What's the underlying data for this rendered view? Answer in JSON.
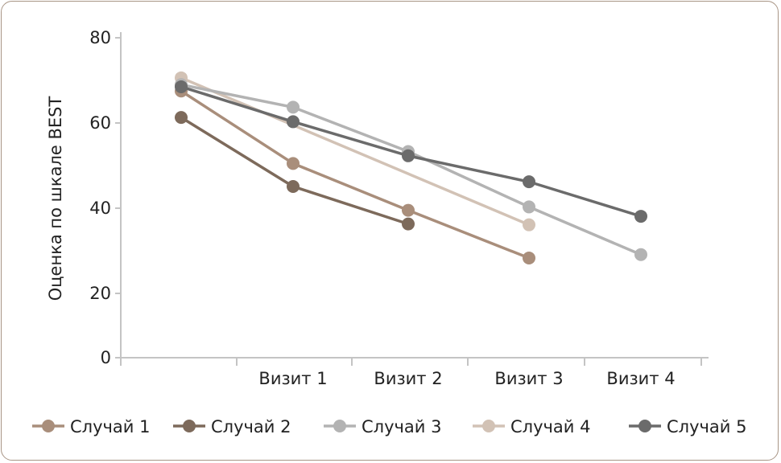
{
  "chart_data": {
    "type": "line",
    "title": "",
    "xlabel": "",
    "ylabel": "Оценка по шкале BEST",
    "categories": [
      "",
      "Визит 1",
      "Визит 2",
      "Визит 3",
      "Визит 4"
    ],
    "yticks": [
      "0",
      "20",
      "40",
      "60",
      "80"
    ],
    "ylim": [
      0,
      80
    ],
    "grid": false,
    "legend_position": "bottom",
    "series": [
      {
        "name": "Случай 1",
        "color": "#a98e7b",
        "values": [
          67.5,
          50.5,
          39.5,
          28.3,
          null
        ]
      },
      {
        "name": "Случай 2",
        "color": "#7d6a5b",
        "values": [
          61.3,
          45.1,
          36.3,
          null,
          null
        ]
      },
      {
        "name": "Случай 3",
        "color": "#b3b3b3",
        "values": [
          69.0,
          63.7,
          53.3,
          40.3,
          29.1
        ]
      },
      {
        "name": "Случай 4",
        "color": "#d2c2b5",
        "values": [
          70.6,
          null,
          null,
          36.1,
          null
        ]
      },
      {
        "name": "Случай 5",
        "color": "#6b6b6b",
        "values": [
          68.5,
          60.3,
          52.3,
          46.2,
          38.1
        ]
      }
    ]
  }
}
